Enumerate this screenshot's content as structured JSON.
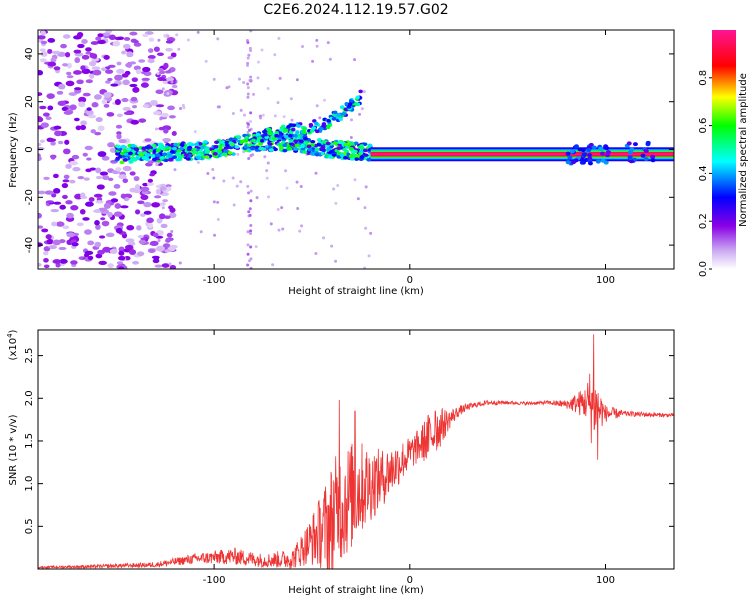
{
  "title": "C2E6.2024.112.19.57.G02",
  "chart_data": [
    {
      "type": "heatmap",
      "xlabel": "Height of straight line (km)",
      "ylabel": "Frequency (Hz)",
      "xlim": [
        -190,
        135
      ],
      "ylim": [
        -50,
        50
      ],
      "x_ticks": [
        -100,
        0,
        100
      ],
      "y_ticks": [
        -40,
        -20,
        0,
        20,
        40
      ],
      "grid": false,
      "colorbar": {
        "label": "Normalized spectral amplitude",
        "range": [
          0,
          1
        ],
        "ticks": [
          "0.0",
          "0.2",
          "0.4",
          "0.6",
          "0.8"
        ],
        "colormap": [
          "#ffffff",
          "#c9a6f2",
          "#8a00e6",
          "#0000ff",
          "#00ffff",
          "#00ff00",
          "#ffff00",
          "#ff0000",
          "#ff1493"
        ]
      },
      "features": {
        "carrier_line": {
          "x_start": -20,
          "x_end": 135,
          "frequency": -2,
          "amplitude": 1.0
        },
        "upper_branch": {
          "x": [
            -80,
            -60,
            -45,
            -35,
            -25
          ],
          "frequency": [
            5,
            8,
            10,
            15,
            22
          ]
        },
        "main_band": {
          "x": [
            -150,
            -120,
            -100,
            -80,
            -60,
            -40,
            -20
          ],
          "frequency": [
            -2,
            -1,
            0,
            3,
            3,
            0,
            -1
          ]
        },
        "noise_region": {
          "x_start": -190,
          "x_end": -130,
          "frequency_range": [
            -50,
            50
          ]
        },
        "bursts": [
          {
            "x": 85,
            "frequency": -2
          },
          {
            "x": 95,
            "frequency": -2
          },
          {
            "x": 118,
            "frequency": -1
          }
        ]
      }
    },
    {
      "type": "line",
      "xlabel": "Height of straight line (km)",
      "ylabel": "SNR (10 * v/v)",
      "y_multiplier": "(x10",
      "y_exponent": "4",
      "y_multiplier_close": ")",
      "xlim": [
        -190,
        135
      ],
      "ylim": [
        0,
        2.8
      ],
      "x_ticks": [
        -100,
        0,
        100
      ],
      "y_ticks": [
        "0.5",
        "1.0",
        "1.5",
        "2.0",
        "2.5"
      ],
      "color": "#ee3333",
      "grid": false,
      "envelope": {
        "x": [
          -190,
          -160,
          -130,
          -110,
          -90,
          -75,
          -60,
          -52,
          -45,
          -40,
          -35,
          -30,
          -25,
          -20,
          -15,
          -10,
          -5,
          0,
          5,
          10,
          15,
          20,
          25,
          30,
          35,
          40,
          50,
          60,
          70,
          80,
          85,
          90,
          93,
          95,
          100,
          110,
          120,
          135
        ],
        "mean": [
          0.02,
          0.03,
          0.05,
          0.12,
          0.15,
          0.1,
          0.12,
          0.3,
          0.45,
          0.55,
          0.75,
          0.85,
          0.95,
          1.0,
          1.05,
          1.15,
          1.25,
          1.35,
          1.45,
          1.55,
          1.65,
          1.75,
          1.85,
          1.9,
          1.93,
          1.95,
          1.95,
          1.94,
          1.95,
          1.93,
          1.94,
          1.95,
          1.94,
          1.9,
          1.82,
          1.82,
          1.81,
          1.8
        ],
        "spread": [
          0.01,
          0.02,
          0.03,
          0.06,
          0.1,
          0.08,
          0.12,
          0.25,
          0.45,
          0.7,
          0.7,
          0.65,
          0.55,
          0.45,
          0.35,
          0.3,
          0.25,
          0.2,
          0.2,
          0.3,
          0.25,
          0.12,
          0.06,
          0.04,
          0.03,
          0.03,
          0.02,
          0.02,
          0.02,
          0.05,
          0.12,
          0.2,
          0.5,
          0.35,
          0.1,
          0.03,
          0.03,
          0.02
        ]
      },
      "peaks": [
        {
          "x": -36,
          "y": 1.98
        },
        {
          "x": -28,
          "y": 1.85
        },
        {
          "x": 13,
          "y": 1.85
        },
        {
          "x": 94,
          "y": 2.75
        },
        {
          "x": 96,
          "y": 1.28
        }
      ]
    }
  ]
}
